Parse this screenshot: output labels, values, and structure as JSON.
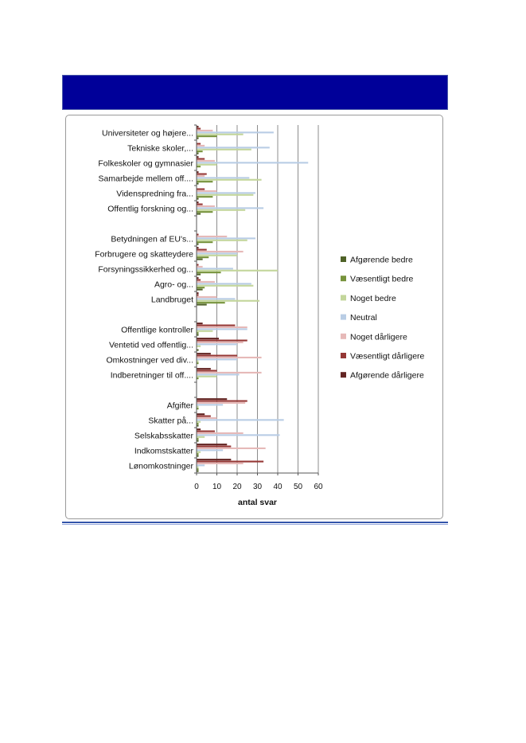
{
  "chart_data": {
    "type": "bar",
    "orientation": "horizontal",
    "title": "",
    "xlabel": "antal svar",
    "ylabel": "",
    "xlim": [
      0,
      60
    ],
    "xticks": [
      0,
      10,
      20,
      30,
      40,
      50,
      60
    ],
    "grid": "vertical",
    "legend_position": "right",
    "categories": [
      "Universiteter og højere...",
      "Tekniske skoler,...",
      "Folkeskoler og gymnasier",
      "Samarbejde mellem off....",
      "Videnspredning fra...",
      "Offentlig forskning og...",
      "",
      "Betydningen af EU's...",
      "Forbrugere og skatteydere",
      "Forsyningssikkerhed og...",
      "Agro- og...",
      "Landbruget",
      "",
      "Offentlige kontroller",
      "Ventetid ved offentlig...",
      "Omkostninger ved div...",
      "Indberetninger til off....",
      "",
      "Afgifter",
      "Skatter på...",
      "Selskabsskatter",
      "Indkomstskatter",
      "Lønomkostninger"
    ],
    "series": [
      {
        "name": "Afgørende bedre",
        "color": "#4f6228",
        "values": [
          1,
          1,
          0,
          1,
          1,
          2,
          null,
          1,
          3,
          2,
          3,
          5,
          null,
          1,
          1,
          0,
          0,
          null,
          0,
          1,
          1,
          1,
          1
        ]
      },
      {
        "name": "Væsentligt bedre",
        "color": "#77933c",
        "values": [
          10,
          3,
          2,
          8,
          8,
          8,
          null,
          8,
          6,
          12,
          4,
          14,
          null,
          1,
          0,
          1,
          1,
          null,
          1,
          1,
          1,
          1,
          1
        ]
      },
      {
        "name": "Noget bedre",
        "color": "#c3d69b",
        "values": [
          23,
          27,
          10,
          32,
          28,
          24,
          null,
          25,
          20,
          40,
          28,
          31,
          null,
          8,
          2,
          1,
          10,
          null,
          1,
          2,
          4,
          2,
          1
        ]
      },
      {
        "name": "Neutral",
        "color": "#b9cde5",
        "values": [
          38,
          36,
          55,
          26,
          29,
          33,
          null,
          29,
          20,
          18,
          27,
          19,
          null,
          25,
          20,
          20,
          21,
          null,
          13,
          43,
          41,
          13,
          4
        ]
      },
      {
        "name": "Noget dårligere",
        "color": "#e6b9b8",
        "values": [
          8,
          4,
          9,
          4,
          10,
          9,
          null,
          15,
          23,
          3,
          9,
          10,
          null,
          25,
          23,
          32,
          32,
          null,
          24,
          10,
          23,
          34,
          23
        ]
      },
      {
        "name": "Væsentligt dårligere",
        "color": "#953735",
        "values": [
          2,
          2,
          4,
          5,
          4,
          3,
          null,
          1,
          5,
          1,
          2,
          1,
          null,
          19,
          25,
          20,
          10,
          null,
          25,
          7,
          9,
          17,
          33
        ]
      },
      {
        "name": "Afgørende dårligere",
        "color": "#632523",
        "values": [
          1,
          0,
          1,
          1,
          0,
          1,
          null,
          0,
          1,
          0,
          1,
          1,
          null,
          3,
          11,
          7,
          7,
          null,
          15,
          4,
          2,
          15,
          17
        ]
      }
    ]
  }
}
